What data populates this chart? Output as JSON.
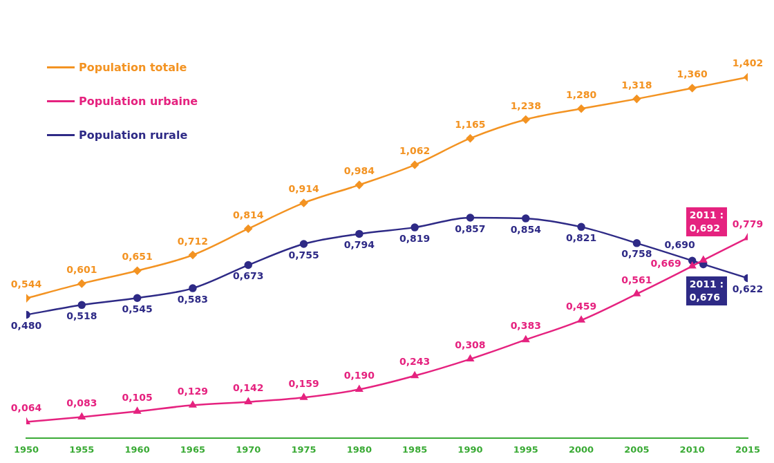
{
  "chart_data": {
    "type": "line",
    "x": [
      1950,
      1955,
      1960,
      1965,
      1970,
      1975,
      1980,
      1985,
      1990,
      1995,
      2000,
      2005,
      2010,
      2011,
      2015
    ],
    "xlim": [
      1950,
      2015
    ],
    "xticks": [
      1950,
      1955,
      1960,
      1965,
      1970,
      1975,
      1980,
      1985,
      1990,
      1995,
      2000,
      2005,
      2010,
      2015
    ],
    "legend": "top left",
    "grid": false,
    "tick_labels": "x",
    "series": [
      {
        "name": "Population totale",
        "color": "#f39322",
        "marker": "diamond",
        "values": [
          0.544,
          0.601,
          0.651,
          0.712,
          0.814,
          0.914,
          0.984,
          1.062,
          1.165,
          1.238,
          1.28,
          1.318,
          1.36,
          null,
          1.402
        ],
        "value_labels": [
          "0,544",
          "0,601",
          "0,651",
          "0,712",
          "0,814",
          "0,914",
          "0,984",
          "1,062",
          "1,165",
          "1,238",
          "1,280",
          "1,318",
          "1,360",
          null,
          "1,402"
        ]
      },
      {
        "name": "Population urbaine",
        "color": "#e5227f",
        "marker": "triangle",
        "values": [
          0.064,
          0.083,
          0.105,
          0.129,
          0.142,
          0.159,
          0.19,
          0.243,
          0.308,
          0.383,
          0.459,
          0.561,
          0.669,
          0.692,
          0.779
        ],
        "value_labels": [
          "0,064",
          "0,083",
          "0,105",
          "0,129",
          "0,142",
          "0,159",
          "0,190",
          "0,243",
          "0,308",
          "0,383",
          "0,459",
          "0,561",
          "0,669",
          null,
          "0,779"
        ]
      },
      {
        "name": "Population rurale",
        "color": "#2e2a86",
        "marker": "circle",
        "values": [
          0.48,
          0.518,
          0.545,
          0.583,
          0.673,
          0.755,
          0.794,
          0.819,
          0.857,
          0.854,
          0.821,
          0.758,
          0.69,
          0.676,
          0.622
        ],
        "value_labels": [
          "0,480",
          "0,518",
          "0,545",
          "0,583",
          "0,673",
          "0,755",
          "0,794",
          "0,819",
          "0,857",
          "0,854",
          "0,821",
          "0,758",
          "0,690",
          null,
          "0,622"
        ]
      }
    ],
    "annotations": [
      {
        "text": "2011 :\n0,692",
        "x": 2011,
        "y": 0.692
      },
      {
        "text": "2011 :\n0,676",
        "x": 2011,
        "y": 0.676
      }
    ]
  }
}
